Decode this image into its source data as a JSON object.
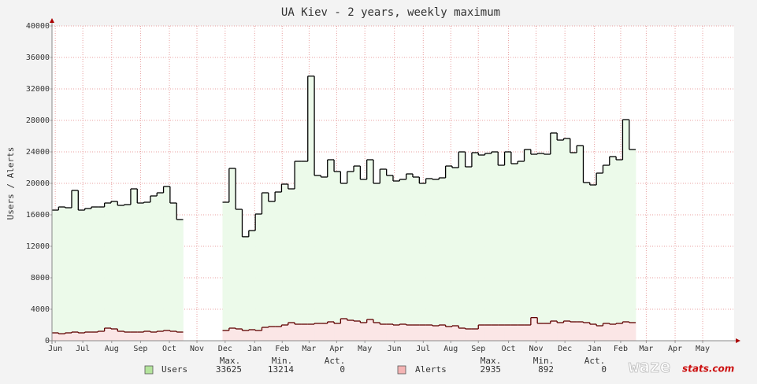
{
  "chart_data": {
    "type": "step-area",
    "title": "UA Kiev - 2 years, weekly maximum",
    "y_label": "Users / Alerts",
    "x": [
      0,
      1,
      2,
      3,
      4,
      5,
      6,
      7,
      8,
      9,
      10,
      11,
      12,
      13,
      14,
      15,
      16,
      17,
      18,
      19,
      20,
      21,
      22,
      23,
      24,
      25,
      26,
      27,
      28,
      29,
      30,
      31,
      32,
      33,
      34,
      35,
      36,
      37,
      38,
      39,
      40,
      41,
      42,
      43,
      44,
      45,
      46,
      47,
      48,
      49,
      50,
      51,
      52,
      53,
      54,
      55,
      56,
      57,
      58,
      59,
      60,
      61,
      62,
      63,
      64,
      65,
      66,
      67,
      68,
      69,
      70,
      71,
      72,
      73,
      74,
      75,
      76,
      77,
      78,
      79,
      80,
      81,
      82,
      83,
      84,
      85,
      86,
      87,
      88
    ],
    "xlim": [
      0,
      104
    ],
    "xticks": [
      {
        "value": 0.5,
        "label": "Jun"
      },
      {
        "value": 4.7,
        "label": "Jul"
      },
      {
        "value": 9.1,
        "label": "Aug"
      },
      {
        "value": 13.5,
        "label": "Sep"
      },
      {
        "value": 17.9,
        "label": "Oct"
      },
      {
        "value": 22.1,
        "label": "Nov"
      },
      {
        "value": 26.4,
        "label": "Dec"
      },
      {
        "value": 30.9,
        "label": "Jan"
      },
      {
        "value": 35.1,
        "label": "Feb"
      },
      {
        "value": 39.2,
        "label": "Mar"
      },
      {
        "value": 43.4,
        "label": "Apr"
      },
      {
        "value": 47.7,
        "label": "May"
      },
      {
        "value": 52.2,
        "label": "Jun"
      },
      {
        "value": 56.6,
        "label": "Jul"
      },
      {
        "value": 60.8,
        "label": "Aug"
      },
      {
        "value": 65.0,
        "label": "Sep"
      },
      {
        "value": 69.6,
        "label": "Oct"
      },
      {
        "value": 73.8,
        "label": "Nov"
      },
      {
        "value": 78.2,
        "label": "Dec"
      },
      {
        "value": 82.7,
        "label": "Jan"
      },
      {
        "value": 86.7,
        "label": "Feb"
      },
      {
        "value": 90.6,
        "label": "Mar"
      },
      {
        "value": 95.0,
        "label": "Apr"
      },
      {
        "value": 99.2,
        "label": "May"
      }
    ],
    "ylim": [
      0,
      40000
    ],
    "yticks": [
      0,
      4000,
      8000,
      12000,
      16000,
      20000,
      24000,
      28000,
      32000,
      36000,
      40000
    ],
    "grid": true,
    "legend_headers": [
      "Max.",
      "Min.",
      "Act."
    ],
    "series": [
      {
        "name": "Users",
        "color": "#000000",
        "fill": "#ecfaea",
        "swatch": "#b4e49c",
        "stats": {
          "max": 33625,
          "min": 13214,
          "act": 0
        },
        "values": [
          16600,
          17000,
          16900,
          19100,
          16600,
          16800,
          17000,
          17000,
          17500,
          17700,
          17200,
          17300,
          19300,
          17500,
          17600,
          18400,
          18800,
          19600,
          17500,
          15400,
          null,
          null,
          null,
          null,
          null,
          null,
          17600,
          21900,
          16700,
          13214,
          14000,
          16100,
          18800,
          17700,
          18900,
          19900,
          19300,
          22800,
          22800,
          33625,
          21000,
          20800,
          23000,
          21500,
          20000,
          21500,
          22200,
          20500,
          23000,
          20000,
          21800,
          21000,
          20300,
          20500,
          21200,
          20800,
          20000,
          20600,
          20500,
          20700,
          22200,
          22000,
          24000,
          22100,
          23900,
          23600,
          23800,
          24000,
          22300,
          24000,
          22500,
          22800,
          24300,
          23700,
          23800,
          23700,
          26400,
          25500,
          25700,
          23900,
          24800,
          20100,
          19800,
          21300,
          22300,
          23400,
          23000,
          28100,
          24300
        ]
      },
      {
        "name": "Alerts",
        "color": "#600000",
        "fill": "#fbe6e6",
        "swatch": "#f4b4b4",
        "stats": {
          "max": 2935,
          "min": 892,
          "act": 0
        },
        "values": [
          1000,
          892,
          1000,
          1100,
          1000,
          1100,
          1100,
          1200,
          1600,
          1500,
          1200,
          1100,
          1100,
          1100,
          1200,
          1100,
          1200,
          1300,
          1200,
          1100,
          null,
          null,
          null,
          null,
          null,
          null,
          1300,
          1600,
          1500,
          1300,
          1400,
          1300,
          1700,
          1800,
          1800,
          2000,
          2300,
          2100,
          2100,
          2100,
          2200,
          2200,
          2400,
          2200,
          2800,
          2600,
          2500,
          2300,
          2700,
          2300,
          2100,
          2100,
          2000,
          2100,
          2000,
          2000,
          2000,
          2000,
          1900,
          2000,
          1800,
          1900,
          1600,
          1500,
          1500,
          2000,
          2000,
          2000,
          2000,
          2000,
          2000,
          2000,
          2000,
          2935,
          2200,
          2200,
          2500,
          2300,
          2500,
          2400,
          2400,
          2300,
          2100,
          1900,
          2200,
          2100,
          2200,
          2400,
          2300
        ]
      }
    ],
    "logo": [
      "waze",
      "stats.com"
    ]
  }
}
